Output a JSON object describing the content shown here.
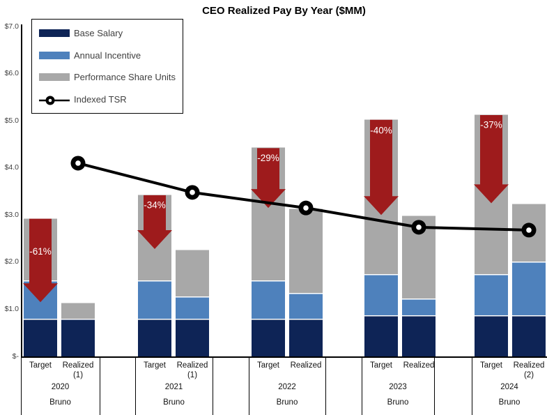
{
  "title": "CEO Realized Pay By Year ($MM)",
  "legend": {
    "items": [
      {
        "label": "Base Salary"
      },
      {
        "label": "Annual Incentive"
      },
      {
        "label": "Performance Share Units"
      },
      {
        "label": "Indexed TSR"
      }
    ]
  },
  "colors": {
    "base_salary": "#0E2456",
    "annual_incentive": "#4E81BC",
    "performance_share_units": "#A8A8A8",
    "indexed_tsr": "#000000",
    "decline_arrow": "#9E1B1C",
    "arrow_label_text": "#FFFFFF"
  },
  "y_axis": {
    "tick_labels": [
      "$7.0",
      "$6.0",
      "$5.0",
      "$4.0",
      "$3.0",
      "$2.0",
      "$1.0",
      "$-"
    ],
    "tick_values": [
      7,
      6,
      5,
      4,
      3,
      2,
      1,
      0
    ]
  },
  "chart_data": {
    "type": "bar",
    "subtype": "stacked-bar-with-line",
    "title": "CEO Realized Pay By Year ($MM)",
    "unit": "$MM",
    "ylim": [
      0,
      7
    ],
    "stack_series": [
      "Base Salary",
      "Annual Incentive",
      "Performance Share Units"
    ],
    "line_series": "Indexed TSR",
    "categories": [
      "2020",
      "2021",
      "2022",
      "2023",
      "2024"
    ],
    "groups": [
      {
        "year": "2020",
        "person": "Bruno",
        "change_pct": "-61%",
        "indexed_tsr": 4.1,
        "bars": [
          {
            "label": "Target",
            "note": "",
            "base_salary": 0.8,
            "annual_incentive": 0.82,
            "psu": 1.33
          },
          {
            "label": "Realized",
            "note": "(1)",
            "base_salary": 0.8,
            "annual_incentive": 0.0,
            "psu": 0.35
          }
        ]
      },
      {
        "year": "2021",
        "person": "Bruno",
        "change_pct": "-34%",
        "indexed_tsr": 3.48,
        "bars": [
          {
            "label": "Target",
            "note": "",
            "base_salary": 0.8,
            "annual_incentive": 0.81,
            "psu": 1.84
          },
          {
            "label": "Realized",
            "note": "(1)",
            "base_salary": 0.8,
            "annual_incentive": 0.47,
            "psu": 1.01
          }
        ]
      },
      {
        "year": "2022",
        "person": "Bruno",
        "change_pct": "-29%",
        "indexed_tsr": 3.15,
        "bars": [
          {
            "label": "Target",
            "note": "",
            "base_salary": 0.8,
            "annual_incentive": 0.81,
            "psu": 2.84
          },
          {
            "label": "Realized",
            "note": "",
            "base_salary": 0.8,
            "annual_incentive": 0.55,
            "psu": 1.8
          }
        ]
      },
      {
        "year": "2023",
        "person": "Bruno",
        "change_pct": "-40%",
        "indexed_tsr": 2.74,
        "bars": [
          {
            "label": "Target",
            "note": "",
            "base_salary": 0.87,
            "annual_incentive": 0.88,
            "psu": 3.3
          },
          {
            "label": "Realized",
            "note": "",
            "base_salary": 0.87,
            "annual_incentive": 0.36,
            "psu": 1.77
          }
        ]
      },
      {
        "year": "2024",
        "person": "Bruno",
        "change_pct": "-37%",
        "indexed_tsr": 2.68,
        "bars": [
          {
            "label": "Target",
            "note": "",
            "base_salary": 0.87,
            "annual_incentive": 0.88,
            "psu": 3.4
          },
          {
            "label": "Realized",
            "note": "(2)",
            "base_salary": 0.87,
            "annual_incentive": 1.15,
            "psu": 1.23
          }
        ]
      }
    ]
  }
}
